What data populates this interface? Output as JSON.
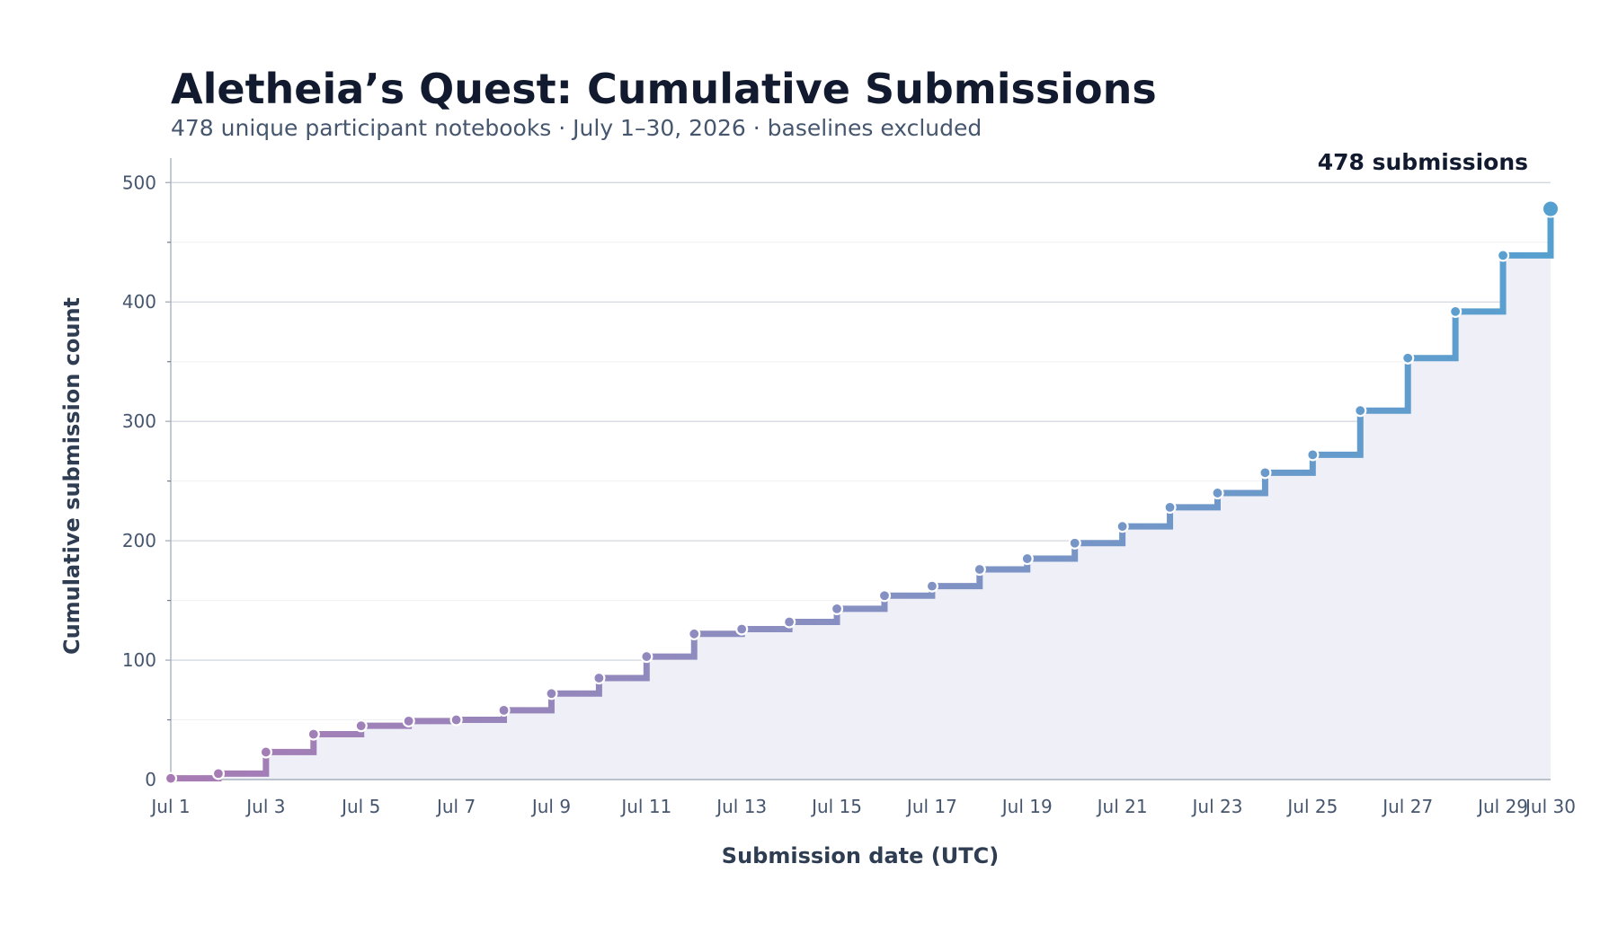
{
  "title": "Aletheia’s Quest: Cumulative Submissions",
  "subtitle": "478 unique participant notebooks · July 1–30, 2026 · baselines excluded",
  "annotation": "478 submissions",
  "colors": {
    "start": "#a87bb4",
    "mid": "#8690c2",
    "end": "#56a0d0",
    "fill": "#efeff8",
    "grid": "#d4d9e1",
    "axis": "#a8b2bd",
    "text": "#46566e"
  },
  "chart_data": {
    "type": "line",
    "style": "step",
    "title": "Aletheia’s Quest: Cumulative Submissions",
    "subtitle": "478 unique participant notebooks · July 1–30, 2026 · baselines excluded",
    "xlabel": "Submission date (UTC)",
    "ylabel": "Cumulative submission count",
    "ylim": [
      0,
      510
    ],
    "yticks": [
      0,
      100,
      200,
      300,
      400,
      500
    ],
    "xticks": [
      "Jul 1",
      "Jul 3",
      "Jul 5",
      "Jul 7",
      "Jul 9",
      "Jul 11",
      "Jul 13",
      "Jul 15",
      "Jul 17",
      "Jul 19",
      "Jul 21",
      "Jul 23",
      "Jul 25",
      "Jul 27",
      "Jul 29",
      "Jul 30"
    ],
    "grid": true,
    "x": [
      "Jul 1",
      "Jul 2",
      "Jul 3",
      "Jul 4",
      "Jul 5",
      "Jul 6",
      "Jul 7",
      "Jul 8",
      "Jul 9",
      "Jul 10",
      "Jul 11",
      "Jul 12",
      "Jul 13",
      "Jul 14",
      "Jul 15",
      "Jul 16",
      "Jul 17",
      "Jul 18",
      "Jul 19",
      "Jul 20",
      "Jul 21",
      "Jul 22",
      "Jul 23",
      "Jul 24",
      "Jul 25",
      "Jul 26",
      "Jul 27",
      "Jul 28",
      "Jul 29",
      "Jul 30"
    ],
    "y": [
      1,
      5,
      23,
      38,
      45,
      49,
      50,
      58,
      72,
      85,
      103,
      122,
      126,
      132,
      143,
      154,
      162,
      176,
      185,
      198,
      212,
      228,
      240,
      257,
      272,
      309,
      353,
      392,
      439,
      478
    ],
    "annotations": [
      "478 submissions"
    ]
  }
}
